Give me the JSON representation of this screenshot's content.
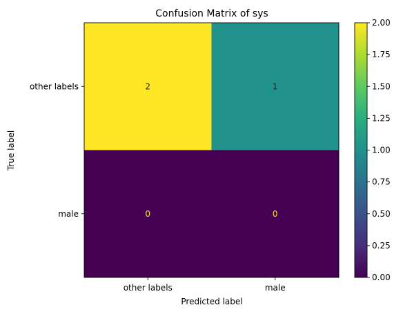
{
  "chart_data": {
    "type": "heatmap",
    "title": "Confusion Matrix of sys",
    "xlabel": "Predicted label",
    "ylabel": "True label",
    "x_categories": [
      "other labels",
      "male"
    ],
    "y_categories": [
      "other labels",
      "male"
    ],
    "values": [
      [
        2,
        1
      ],
      [
        0,
        0
      ]
    ],
    "value_labels": [
      [
        "2",
        "1"
      ],
      [
        "0",
        "0"
      ]
    ],
    "colormap": "viridis",
    "vmin": 0,
    "vmax": 2,
    "colorbar_ticks": [
      "0.00",
      "0.25",
      "0.50",
      "0.75",
      "1.00",
      "1.25",
      "1.50",
      "1.75",
      "2.00"
    ],
    "grid": false,
    "legend": "colorbar-right"
  }
}
